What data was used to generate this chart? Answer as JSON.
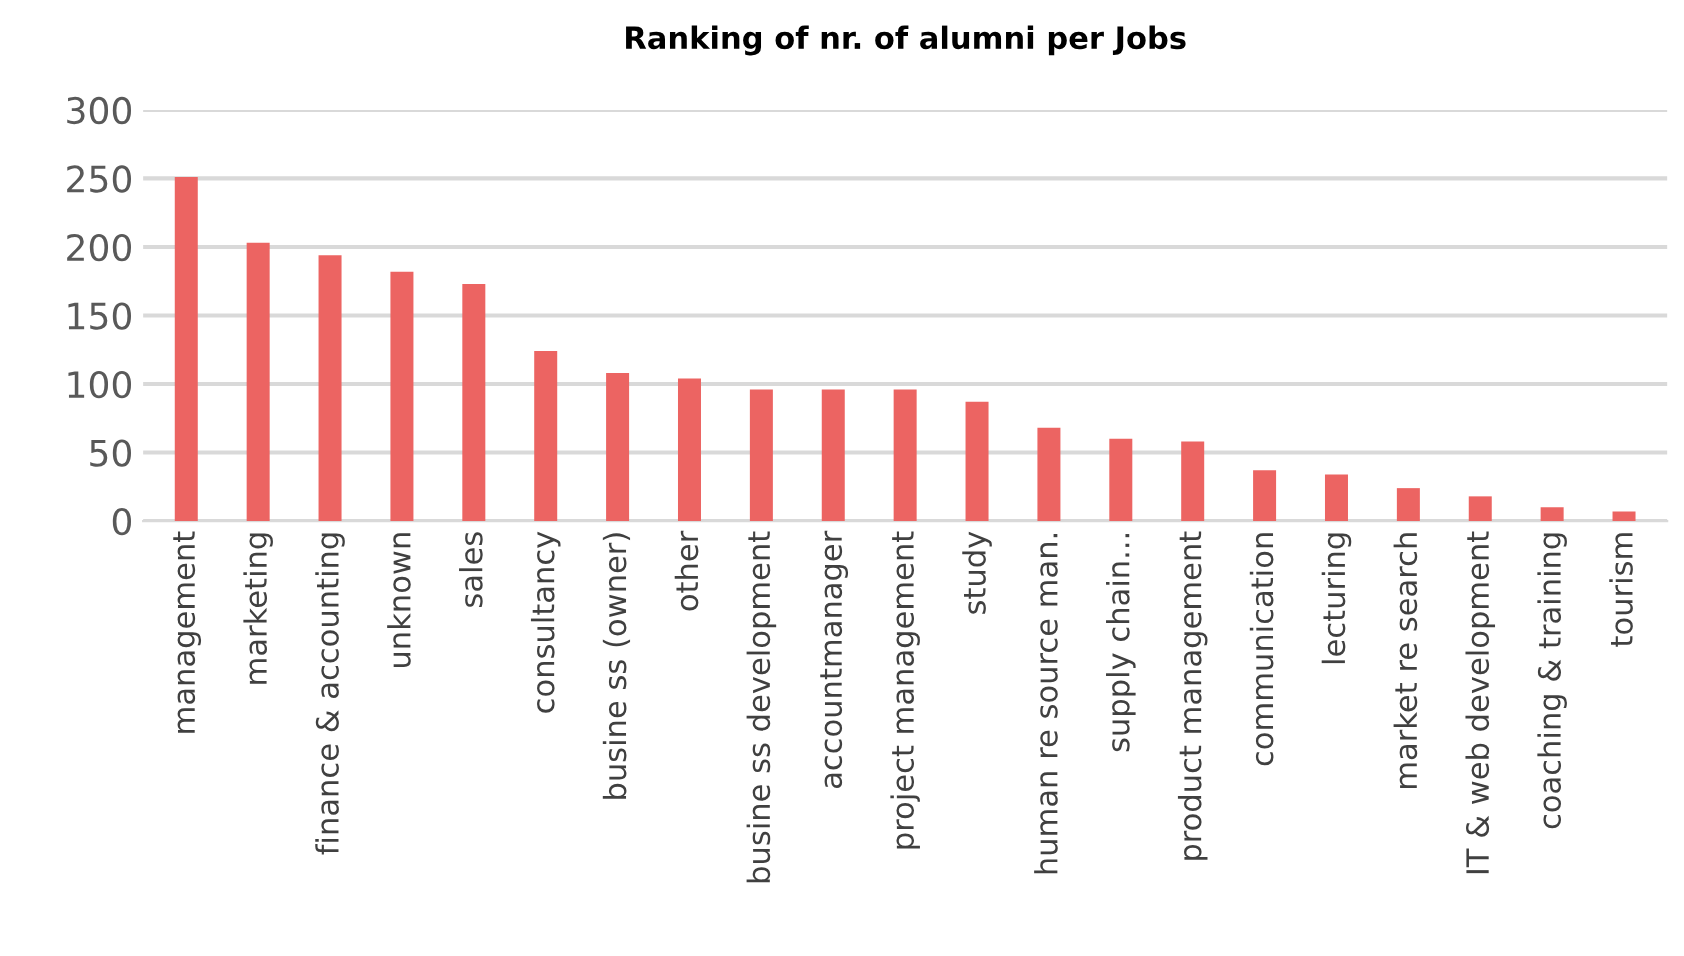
{
  "chart_data": {
    "type": "bar",
    "title": "Ranking of nr. of alumni per Jobs",
    "categories": [
      "management",
      "marketing",
      "finance & accounting",
      "unknown",
      "sales",
      "consultancy",
      "busine ss (owner)",
      "other",
      "busine ss development",
      "accountmanager",
      "project management",
      "study",
      "human re source man.",
      "supply chain...",
      "product management",
      "communication",
      "lecturing",
      "market re search",
      "IT & web development",
      "coaching & training",
      "tourism"
    ],
    "values": [
      251,
      203,
      194,
      182,
      173,
      124,
      108,
      104,
      96,
      96,
      96,
      87,
      68,
      60,
      58,
      37,
      34,
      24,
      18,
      10,
      7
    ],
    "color": "#ec6462",
    "ylim": [
      0,
      300
    ],
    "yticks": [
      0,
      50,
      100,
      150,
      200,
      250,
      300
    ],
    "grid": "y"
  }
}
